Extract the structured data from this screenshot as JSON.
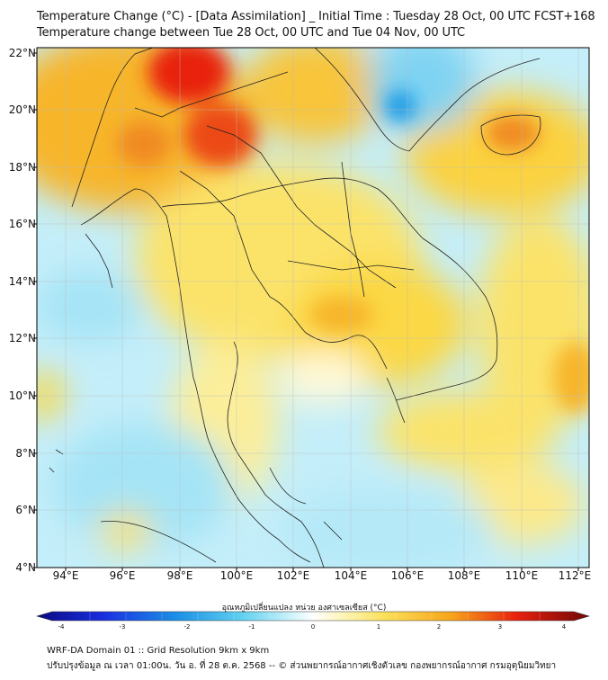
{
  "header": {
    "title_line1": "Temperature Change (°C) - [Data Assimilation] _ Initial Time : Tuesday 28 Oct, 00 UTC FCST+168",
    "title_line2": "Temperature change between Tue 28 Oct, 00 UTC and Tue 04 Nov, 00 UTC"
  },
  "map": {
    "lat_labels": [
      "22°N",
      "20°N",
      "18°N",
      "16°N",
      "14°N",
      "12°N",
      "10°N",
      "8°N",
      "6°N",
      "4°N"
    ],
    "lon_labels": [
      "94°E",
      "96°E",
      "98°E",
      "100°E",
      "102°E",
      "104°E",
      "106°E",
      "108°E",
      "110°E",
      "112°E"
    ],
    "colors": {
      "warm_strong": "#e8200e",
      "warm": "#f7a51a",
      "mild": "#fbe05a",
      "neutral": "#ffffff",
      "cool": "#7fdcf2",
      "cold": "#1a9ce6"
    }
  },
  "colorbar": {
    "title": "อุณหภูมิเปลี่ยนแปลง หน่วย องศาเซลเซียส (°C)",
    "ticks": [
      "-4",
      "-3",
      "-2",
      "-1",
      "0",
      "1",
      "2",
      "3",
      "4"
    ]
  },
  "footer": {
    "line1": "WRF-DA Domain 01 :: Grid Resolution 9km x 9km",
    "line2": "ปรับปรุงข้อมูล ณ เวลา 01:00น. วัน อ. ที่ 28 ต.ค. 2568 -- © ส่วนพยากรณ์อากาศเชิงตัวเลข กองพยากรณ์อากาศ กรมอุตุนิยมวิทยา"
  }
}
